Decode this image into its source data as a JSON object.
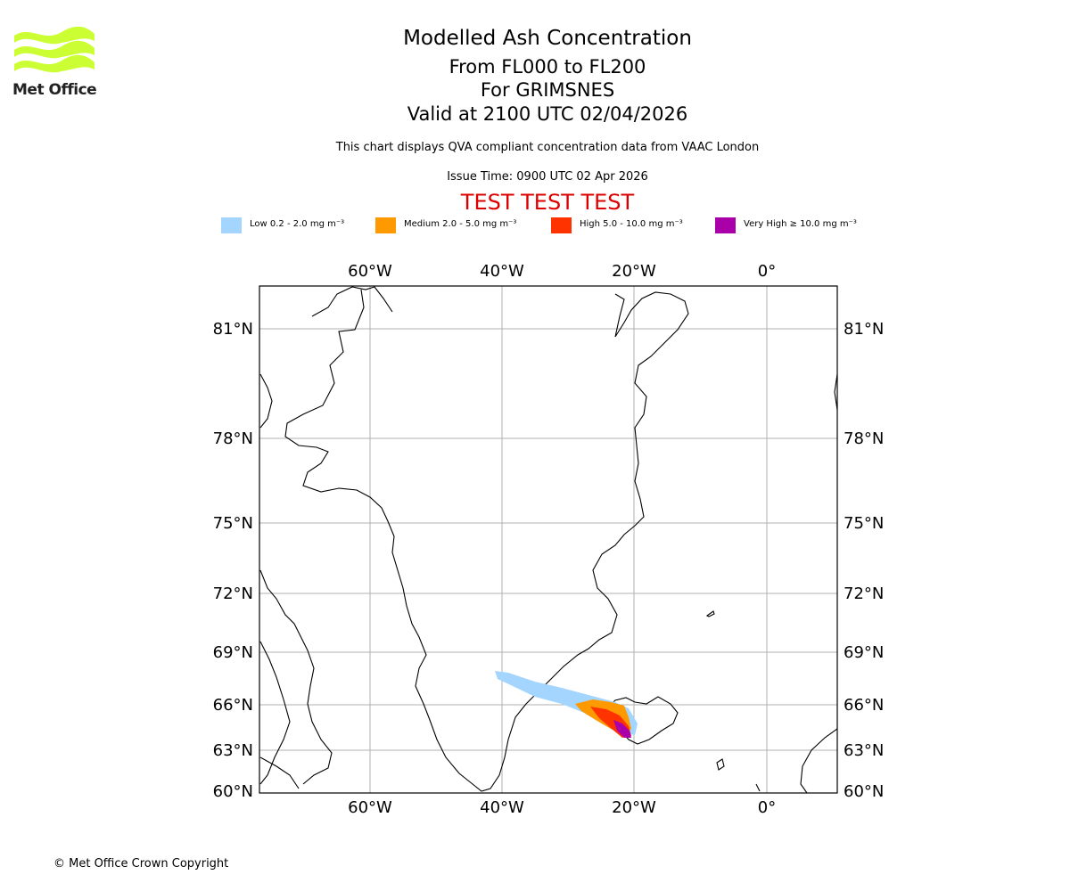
{
  "header": {
    "title": "Modelled Ash Concentration",
    "flight_levels": "From FL000 to FL200",
    "volcano": "For GRIMSNES",
    "valid": "Valid at 2100 UTC 02/04/2026",
    "note": "This chart displays QVA compliant concentration data from VAAC London",
    "issue_time": "Issue Time: 0900 UTC 02 Apr 2026",
    "test_banner": "TEST TEST TEST"
  },
  "logo": {
    "text": "Met Office",
    "color": "#ccff33"
  },
  "legend": [
    {
      "label": "Low 0.2 - 2.0 mg m⁻³",
      "color": "#a3d5ff"
    },
    {
      "label": "Medium 2.0 - 5.0 mg m⁻³",
      "color": "#ff9900"
    },
    {
      "label": "High 5.0 - 10.0 mg m⁻³",
      "color": "#ff3300"
    },
    {
      "label": "Very High ≥ 10.0 mg m⁻³",
      "color": "#aa00aa"
    }
  ],
  "map": {
    "lon_labels": [
      "60°W",
      "40°W",
      "20°W",
      "0°"
    ],
    "lat_labels": [
      "81°N",
      "78°N",
      "75°N",
      "72°N",
      "69°N",
      "66°N",
      "63°N",
      "60°N"
    ],
    "test_color": "#dd0000"
  },
  "footer": {
    "copyright": "© Met Office Crown Copyright"
  }
}
